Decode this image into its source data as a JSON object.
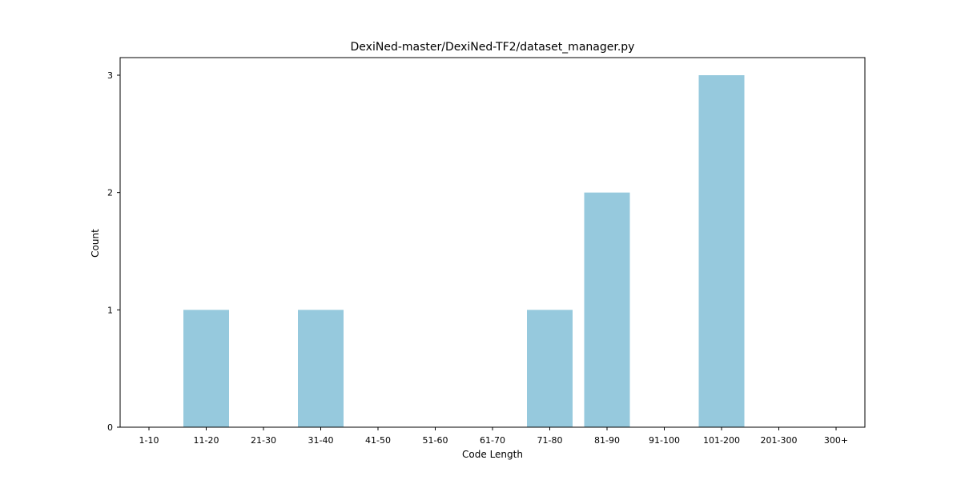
{
  "chart_data": {
    "type": "bar",
    "title": "DexiNed-master/DexiNed-TF2/dataset_manager.py",
    "xlabel": "Code Length",
    "ylabel": "Count",
    "categories": [
      "1-10",
      "11-20",
      "21-30",
      "31-40",
      "41-50",
      "51-60",
      "61-70",
      "71-80",
      "81-90",
      "91-100",
      "101-200",
      "201-300",
      "300+"
    ],
    "values": [
      0,
      1,
      0,
      1,
      0,
      0,
      0,
      1,
      2,
      0,
      3,
      0,
      0
    ],
    "yticks": [
      0,
      1,
      2,
      3
    ],
    "ylim": [
      0,
      3.15
    ],
    "bar_color": "#96c9dd",
    "grid": false,
    "legend": "none"
  }
}
